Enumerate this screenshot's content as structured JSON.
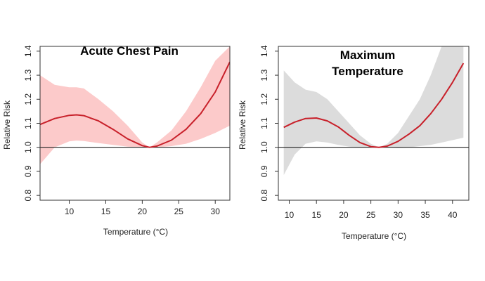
{
  "chart_data": [
    {
      "type": "line",
      "title": "Acute Chest Pain",
      "xlabel": "Temperature (°C)",
      "ylabel": "Relative Risk",
      "xlim": [
        6,
        32
      ],
      "ylim": [
        0.78,
        1.42
      ],
      "xticks": [
        10,
        15,
        20,
        25,
        30
      ],
      "yticks": [
        0.8,
        0.9,
        1.0,
        1.1,
        1.2,
        1.3,
        1.4
      ],
      "reference_line": 1.0,
      "colors": {
        "line": "#c8202a",
        "band": "#fccaca",
        "axis": "#333333",
        "ref": "#222222"
      },
      "series": [
        {
          "x": [
            6,
            8,
            10,
            11,
            12,
            14,
            16,
            18,
            20,
            21,
            22,
            24,
            26,
            28,
            30,
            32
          ],
          "y": [
            1.095,
            1.12,
            1.133,
            1.135,
            1.132,
            1.11,
            1.075,
            1.035,
            1.007,
            1.0,
            1.005,
            1.03,
            1.075,
            1.14,
            1.23,
            1.355
          ],
          "lower": [
            0.93,
            1.0,
            1.025,
            1.028,
            1.026,
            1.018,
            1.01,
            1.003,
            1.0,
            1.0,
            1.0,
            1.005,
            1.015,
            1.035,
            1.06,
            1.09
          ],
          "upper": [
            1.3,
            1.26,
            1.25,
            1.25,
            1.245,
            1.2,
            1.15,
            1.09,
            1.02,
            1.0,
            1.02,
            1.07,
            1.15,
            1.25,
            1.36,
            1.42
          ]
        }
      ]
    },
    {
      "type": "line",
      "title": "Maximum Temperature",
      "title_lines": [
        "Maximum",
        "Temperature"
      ],
      "xlabel": "Temperature (°C)",
      "ylabel": "Relative Risk",
      "xlim": [
        8,
        43
      ],
      "ylim": [
        0.78,
        1.42
      ],
      "xticks": [
        10,
        15,
        20,
        25,
        30,
        35,
        40
      ],
      "yticks": [
        0.8,
        0.9,
        1.0,
        1.1,
        1.2,
        1.3,
        1.4
      ],
      "reference_line": 1.0,
      "colors": {
        "line": "#c8202a",
        "band": "#dcdcdc",
        "axis": "#333333",
        "ref": "#222222"
      },
      "series": [
        {
          "x": [
            9,
            11,
            13,
            15,
            17,
            19,
            21,
            23,
            25,
            26.5,
            28,
            30,
            32,
            34,
            36,
            38,
            40,
            42
          ],
          "y": [
            1.083,
            1.105,
            1.12,
            1.122,
            1.11,
            1.085,
            1.05,
            1.02,
            1.003,
            1.0,
            1.005,
            1.025,
            1.055,
            1.09,
            1.14,
            1.2,
            1.27,
            1.35
          ],
          "lower": [
            0.885,
            0.97,
            1.015,
            1.025,
            1.02,
            1.01,
            1.003,
            1.0,
            1.0,
            1.0,
            1.0,
            0.997,
            1.0,
            1.005,
            1.01,
            1.02,
            1.03,
            1.04
          ],
          "upper": [
            1.32,
            1.27,
            1.24,
            1.23,
            1.2,
            1.15,
            1.1,
            1.05,
            1.015,
            1.0,
            1.015,
            1.06,
            1.13,
            1.2,
            1.3,
            1.42,
            1.42,
            1.42
          ]
        }
      ]
    }
  ]
}
